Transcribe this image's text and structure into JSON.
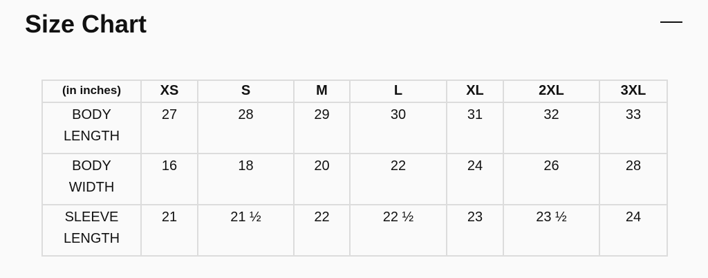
{
  "title": "Size Chart",
  "collapse_icon": "minus-icon",
  "table": {
    "headers": [
      "(in inches)",
      "XS",
      "S",
      "M",
      "L",
      "XL",
      "2XL",
      "3XL"
    ],
    "rows": [
      {
        "label": [
          "BODY",
          "LENGTH"
        ],
        "values": [
          "27",
          "28",
          "29",
          "30",
          "31",
          "32",
          "33"
        ]
      },
      {
        "label": [
          "BODY",
          "WIDTH"
        ],
        "values": [
          "16",
          "18",
          "20",
          "22",
          "24",
          "26",
          "28"
        ]
      },
      {
        "label": [
          "SLEEVE",
          "LENGTH"
        ],
        "values": [
          "21",
          "21 ½",
          "22",
          "22 ½",
          "23",
          "23 ½",
          "24"
        ]
      }
    ]
  }
}
